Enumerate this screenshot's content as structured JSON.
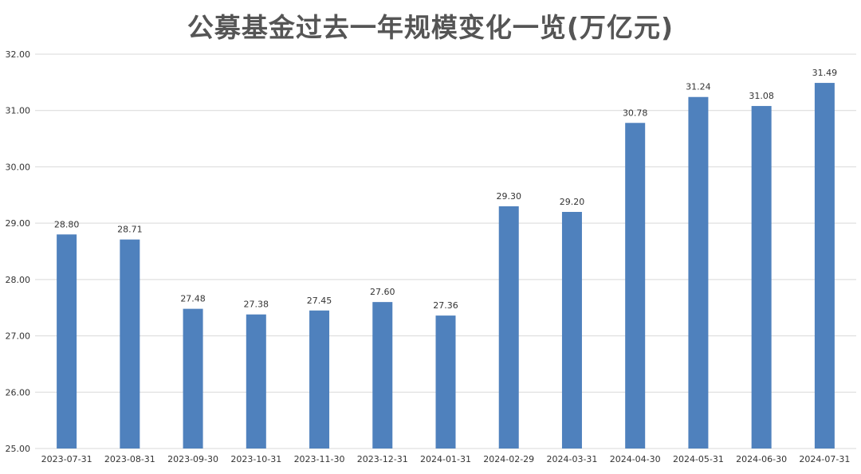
{
  "chart_data": {
    "type": "bar",
    "title": "公募基金过去一年规模变化一览(万亿元)",
    "xlabel": "",
    "ylabel": "",
    "categories": [
      "2023-07-31",
      "2023-08-31",
      "2023-09-30",
      "2023-10-31",
      "2023-11-30",
      "2023-12-31",
      "2024-01-31",
      "2024-02-29",
      "2024-03-31",
      "2024-04-30",
      "2024-05-31",
      "2024-06-30",
      "2024-07-31"
    ],
    "values": [
      28.8,
      28.71,
      27.48,
      27.38,
      27.45,
      27.6,
      27.36,
      29.3,
      29.2,
      30.78,
      31.24,
      31.08,
      31.49
    ],
    "value_labels": [
      "28.80",
      "28.71",
      "27.48",
      "27.38",
      "27.45",
      "27.60",
      "27.36",
      "29.30",
      "29.20",
      "30.78",
      "31.24",
      "31.08",
      "31.49"
    ],
    "ylim": [
      25.0,
      32.0
    ],
    "yticks": [
      "25.00",
      "26.00",
      "27.00",
      "28.00",
      "29.00",
      "30.00",
      "31.00",
      "32.00"
    ],
    "ytick_values": [
      25,
      26,
      27,
      28,
      29,
      30,
      31,
      32
    ],
    "grid": true,
    "legend": "none",
    "bar_color": "#4f81bd"
  }
}
